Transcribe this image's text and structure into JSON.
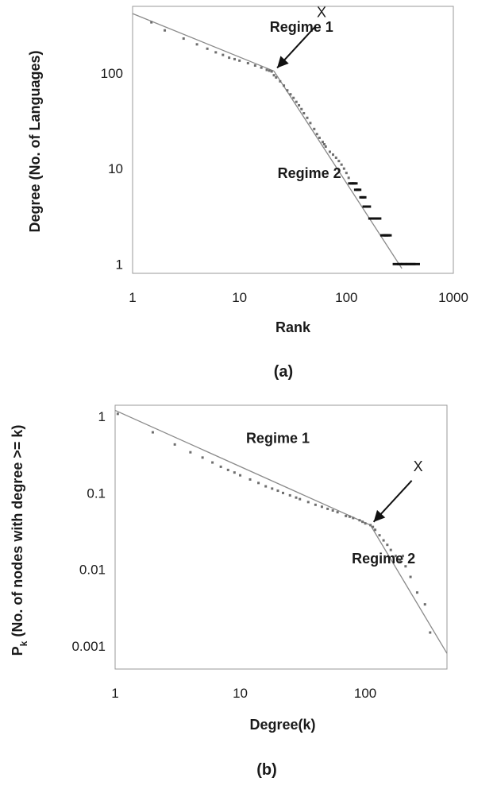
{
  "chart_data": [
    {
      "type": "scatter",
      "caption": "(a)",
      "xlabel": "Rank",
      "ylabel": "Degree (No. of Languages)",
      "xscale": "log",
      "yscale": "log",
      "xlim": [
        1,
        1000
      ],
      "ylim": [
        0.8,
        500
      ],
      "xticks": [
        {
          "value": 1,
          "label": "1"
        },
        {
          "value": 10,
          "label": "10"
        },
        {
          "value": 100,
          "label": "100"
        },
        {
          "value": 1000,
          "label": "1000"
        }
      ],
      "yticks": [
        {
          "value": 1,
          "label": "1"
        },
        {
          "value": 10,
          "label": "10"
        },
        {
          "value": 100,
          "label": "100"
        }
      ],
      "points": [
        [
          1.5,
          340
        ],
        [
          2,
          280
        ],
        [
          3,
          230
        ],
        [
          4,
          200
        ],
        [
          5,
          180
        ],
        [
          6,
          165
        ],
        [
          7,
          155
        ],
        [
          8,
          145
        ],
        [
          9,
          140
        ],
        [
          10,
          135
        ],
        [
          12,
          127
        ],
        [
          14,
          120
        ],
        [
          16,
          114
        ],
        [
          18,
          108
        ],
        [
          19,
          106
        ],
        [
          20,
          104
        ],
        [
          21,
          95
        ],
        [
          22,
          90
        ],
        [
          24,
          82
        ],
        [
          26,
          74
        ],
        [
          28,
          66
        ],
        [
          30,
          60
        ],
        [
          32,
          55
        ],
        [
          34,
          50
        ],
        [
          36,
          46
        ],
        [
          38,
          42
        ],
        [
          40,
          38
        ],
        [
          43,
          34
        ],
        [
          46,
          30
        ],
        [
          50,
          26
        ],
        [
          53,
          23
        ],
        [
          56,
          21
        ],
        [
          60,
          19
        ],
        [
          62,
          18
        ],
        [
          64,
          17
        ],
        [
          70,
          15
        ],
        [
          75,
          14
        ],
        [
          80,
          13
        ],
        [
          85,
          12
        ],
        [
          90,
          11
        ],
        [
          95,
          10
        ],
        [
          100,
          9
        ],
        [
          105,
          8
        ],
        [
          110,
          7
        ],
        [
          115,
          7
        ],
        [
          120,
          7
        ],
        [
          125,
          6
        ],
        [
          130,
          6
        ],
        [
          140,
          5
        ],
        [
          145,
          5
        ],
        [
          150,
          4
        ],
        [
          160,
          4
        ],
        [
          170,
          3
        ],
        [
          180,
          3
        ],
        [
          190,
          3
        ],
        [
          200,
          3
        ],
        [
          220,
          2
        ],
        [
          230,
          2
        ],
        [
          240,
          2
        ],
        [
          250,
          2
        ],
        [
          300,
          1
        ],
        [
          330,
          1
        ],
        [
          360,
          1
        ],
        [
          400,
          1
        ],
        [
          440,
          1
        ]
      ],
      "fit_lines": [
        {
          "x": [
            1,
            21
          ],
          "y": [
            420,
            105
          ]
        },
        {
          "x": [
            21,
            330
          ],
          "y": [
            105,
            0.9
          ]
        }
      ],
      "annotations": [
        {
          "text": "Regime 1",
          "x": 38,
          "y": 270
        },
        {
          "text": "Regime 2",
          "x": 45,
          "y": 8
        }
      ],
      "point_marker": {
        "text": "X",
        "x": 21,
        "y": 105
      }
    },
    {
      "type": "scatter",
      "caption": "(b)",
      "xlabel": "Degree(k)",
      "ylabel_main": "P",
      "ylabel_sub": "k",
      "ylabel_rest": " (No. of nodes with degree >= k)",
      "xscale": "log",
      "yscale": "log",
      "xlim": [
        1,
        450
      ],
      "ylim": [
        0.0005,
        1.4
      ],
      "xticks": [
        {
          "value": 1,
          "label": "1"
        },
        {
          "value": 10,
          "label": "10"
        },
        {
          "value": 100,
          "label": "100"
        }
      ],
      "yticks": [
        {
          "value": 1,
          "label": "1"
        },
        {
          "value": 0.1,
          "label": "0.1"
        },
        {
          "value": 0.01,
          "label": "0.01"
        },
        {
          "value": 0.001,
          "label": "0.001"
        }
      ],
      "points": [
        [
          1.05,
          1.08
        ],
        [
          2,
          0.62
        ],
        [
          3,
          0.43
        ],
        [
          4,
          0.34
        ],
        [
          5,
          0.29
        ],
        [
          6,
          0.25
        ],
        [
          7,
          0.22
        ],
        [
          8,
          0.2
        ],
        [
          9,
          0.185
        ],
        [
          10,
          0.17
        ],
        [
          12,
          0.15
        ],
        [
          14,
          0.135
        ],
        [
          16,
          0.122
        ],
        [
          18,
          0.114
        ],
        [
          20,
          0.107
        ],
        [
          22,
          0.1
        ],
        [
          25,
          0.093
        ],
        [
          28,
          0.087
        ],
        [
          30,
          0.083
        ],
        [
          35,
          0.076
        ],
        [
          40,
          0.07
        ],
        [
          45,
          0.066
        ],
        [
          50,
          0.062
        ],
        [
          55,
          0.059
        ],
        [
          60,
          0.056
        ],
        [
          70,
          0.05
        ],
        [
          75,
          0.049
        ],
        [
          80,
          0.047
        ],
        [
          90,
          0.044
        ],
        [
          95,
          0.042
        ],
        [
          100,
          0.04
        ],
        [
          110,
          0.038
        ],
        [
          115,
          0.036
        ],
        [
          120,
          0.033
        ],
        [
          130,
          0.028
        ],
        [
          140,
          0.024
        ],
        [
          150,
          0.021
        ],
        [
          160,
          0.018
        ],
        [
          175,
          0.015
        ],
        [
          190,
          0.013
        ],
        [
          200,
          0.015
        ],
        [
          210,
          0.011
        ],
        [
          230,
          0.008
        ],
        [
          260,
          0.005
        ],
        [
          300,
          0.0035
        ],
        [
          330,
          0.0015
        ]
      ],
      "fit_lines": [
        {
          "x": [
            1,
            110
          ],
          "y": [
            1.2,
            0.038
          ]
        },
        {
          "x": [
            110,
            450
          ],
          "y": [
            0.038,
            0.0008
          ]
        }
      ],
      "annotations": [
        {
          "text": "Regime 1",
          "x": 20,
          "y": 0.45
        },
        {
          "text": "Regime 2",
          "x": 140,
          "y": 0.012
        }
      ],
      "point_marker": {
        "text": "X",
        "x": 110,
        "y": 0.038
      }
    }
  ]
}
